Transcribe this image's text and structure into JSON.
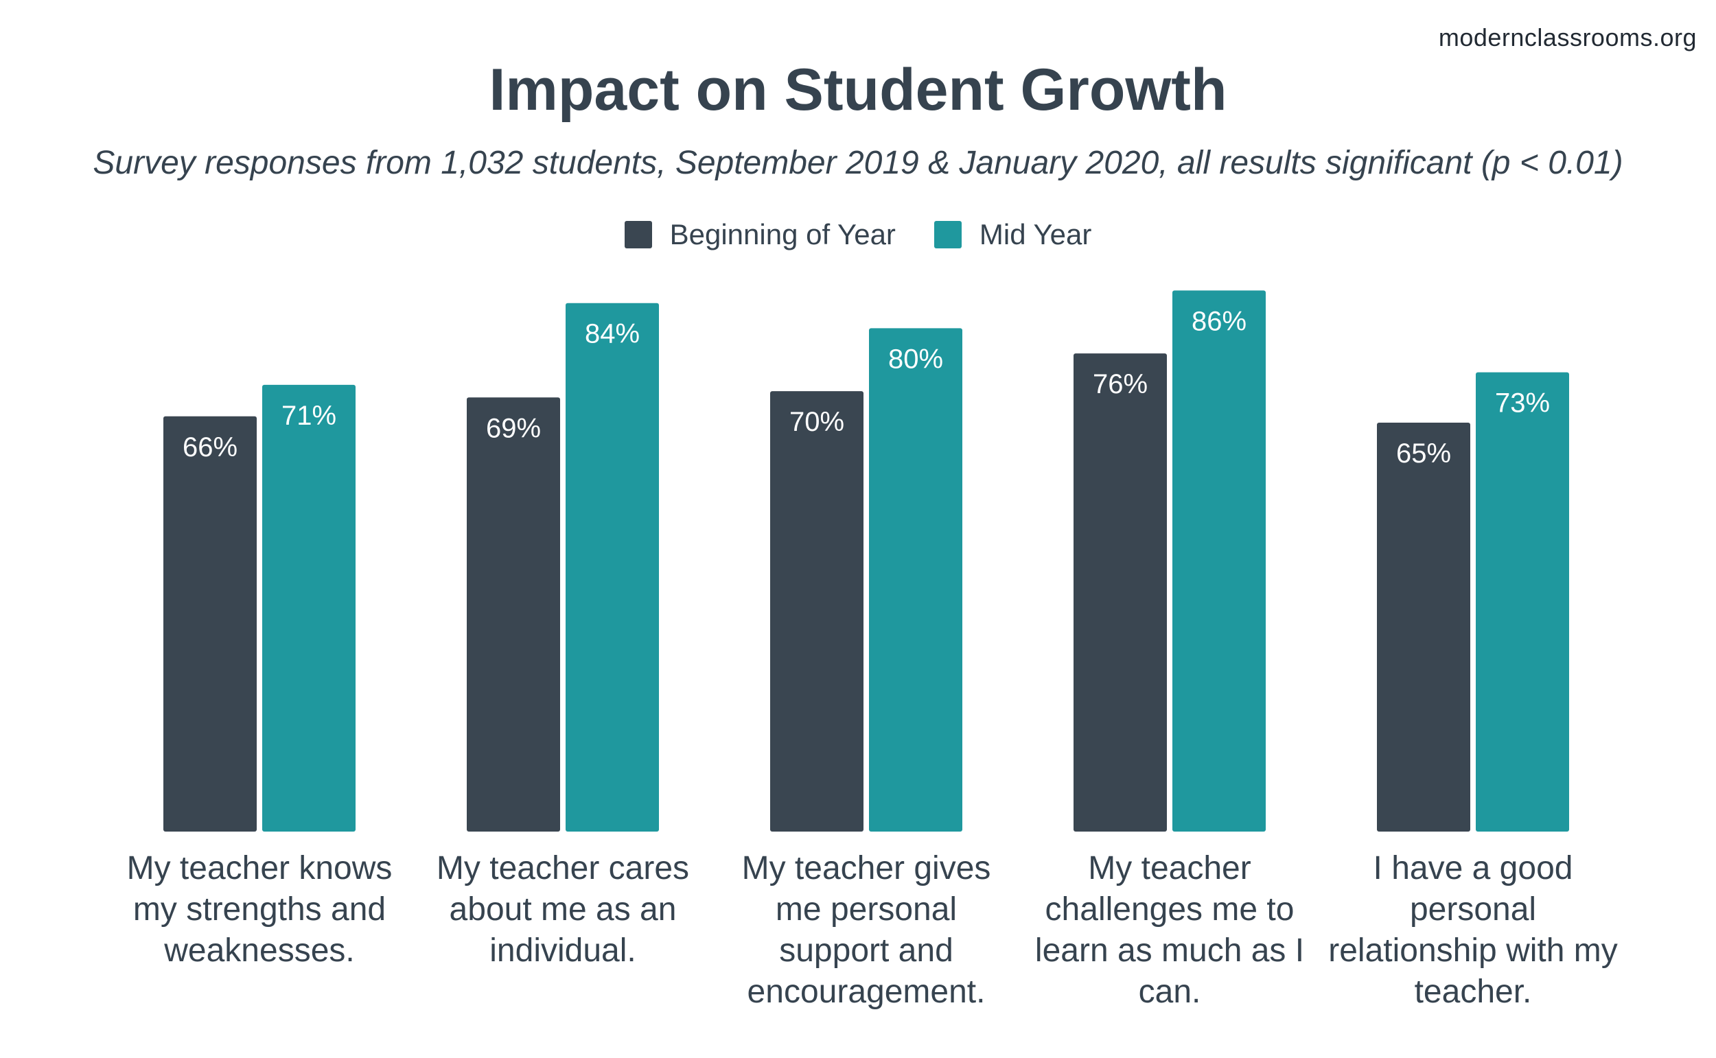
{
  "source": "modernclassrooms.org",
  "colors": {
    "beginning": "#3a4651",
    "mid": "#1f989e",
    "text": "#36434f"
  },
  "chart_data": {
    "type": "bar",
    "title": "Impact on Student Growth",
    "subtitle": "Survey responses from 1,032 students, September 2019 & January 2020, all results significant (p < 0.01)",
    "categories": [
      "My teacher knows my strengths and weaknesses.",
      "My teacher cares about me as an individual.",
      "My teacher gives me personal support and encouragement.",
      "My teacher challenges me to learn as much as I can.",
      "I have a good personal relationship with my teacher."
    ],
    "series": [
      {
        "name": "Beginning of Year",
        "values": [
          66,
          69,
          70,
          76,
          65
        ],
        "labels": [
          "66%",
          "69%",
          "70%",
          "76%",
          "65%"
        ]
      },
      {
        "name": "Mid Year",
        "values": [
          71,
          84,
          80,
          86,
          73
        ],
        "labels": [
          "71%",
          "84%",
          "80%",
          "86%",
          "73%"
        ]
      }
    ],
    "legend": [
      "Beginning of Year",
      "Mid Year"
    ],
    "ylim": [
      0,
      100
    ],
    "grid": false,
    "legend_position": "top-center",
    "xlabel": "",
    "ylabel": ""
  }
}
